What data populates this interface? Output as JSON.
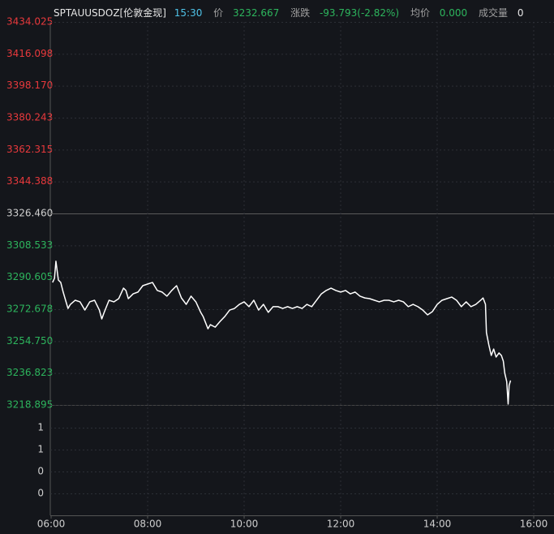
{
  "chart_data": {
    "type": "line",
    "header": {
      "symbol": "SPTAUUSDOZ[伦敦金现]",
      "time": "15:30",
      "price_label": "价",
      "price": 3232.667,
      "change_label": "涨跌",
      "change": -93.793,
      "change_percent": "(-2.82%)",
      "avg_label": "均价",
      "avg": "0.000",
      "volume_label": "成交量",
      "volume": 0
    },
    "colors": {
      "line": "#ffffff",
      "up": "#e8393c",
      "down": "#2db55d",
      "flat": "#cfcfcf",
      "time": "#4fc3e8"
    },
    "xlim": [
      6,
      16.42
    ],
    "xticks": [
      {
        "value": 6,
        "label": "06:00"
      },
      {
        "value": 8,
        "label": "08:00"
      },
      {
        "value": 10,
        "label": "10:00"
      },
      {
        "value": 12,
        "label": "12:00"
      },
      {
        "value": 14,
        "label": "14:00"
      },
      {
        "value": 16,
        "label": "16:00"
      }
    ],
    "ylim": [
      3218.895,
      3434.025
    ],
    "yticks": [
      3434.025,
      3416.098,
      3398.17,
      3380.243,
      3362.315,
      3344.388,
      3326.46,
      3308.533,
      3290.605,
      3272.678,
      3254.75,
      3236.823,
      3218.895
    ],
    "yticks_labels": [
      "3434.025",
      "3416.098",
      "3398.170",
      "3380.243",
      "3362.315",
      "3344.388",
      "3326.460",
      "3308.533",
      "3290.605",
      "3272.678",
      "3254.750",
      "3236.823",
      "3218.895"
    ],
    "volume_ylim": [
      0,
      1
    ],
    "volume_yticks": [
      {
        "value": 0.8,
        "label": "1"
      },
      {
        "value": 0.6,
        "label": "1"
      },
      {
        "value": 0.4,
        "label": "0"
      },
      {
        "value": 0.2,
        "label": "0"
      }
    ],
    "grid": true,
    "series": [
      {
        "name": "SPTAUUSDOZ",
        "color": "#ffffff",
        "x": [
          6.03,
          6.07,
          6.1,
          6.15,
          6.2,
          6.25,
          6.3,
          6.35,
          6.4,
          6.5,
          6.6,
          6.7,
          6.8,
          6.9,
          7.0,
          7.05,
          7.1,
          7.2,
          7.3,
          7.4,
          7.5,
          7.55,
          7.6,
          7.7,
          7.8,
          7.9,
          8.0,
          8.1,
          8.2,
          8.3,
          8.4,
          8.5,
          8.6,
          8.7,
          8.8,
          8.9,
          9.0,
          9.1,
          9.15,
          9.25,
          9.3,
          9.4,
          9.5,
          9.6,
          9.7,
          9.8,
          9.9,
          10.0,
          10.1,
          10.2,
          10.3,
          10.4,
          10.5,
          10.6,
          10.7,
          10.8,
          10.9,
          11.0,
          11.1,
          11.2,
          11.3,
          11.4,
          11.5,
          11.6,
          11.7,
          11.8,
          11.9,
          12.0,
          12.1,
          12.2,
          12.3,
          12.4,
          12.5,
          12.6,
          12.7,
          12.8,
          12.9,
          13.0,
          13.1,
          13.2,
          13.3,
          13.4,
          13.5,
          13.6,
          13.7,
          13.8,
          13.9,
          14.0,
          14.1,
          14.2,
          14.3,
          14.4,
          14.5,
          14.6,
          14.7,
          14.8,
          14.9,
          14.95,
          15.0,
          15.02,
          15.07,
          15.12,
          15.17,
          15.22,
          15.28,
          15.33,
          15.37,
          15.4,
          15.44,
          15.47,
          15.49,
          15.52
        ],
        "values": [
          3287.7,
          3290.0,
          3299.6,
          3289.1,
          3287.7,
          3282.3,
          3277.7,
          3273.1,
          3275.4,
          3277.7,
          3276.8,
          3272.2,
          3276.8,
          3277.7,
          3272.2,
          3267.2,
          3270.9,
          3277.7,
          3276.8,
          3278.6,
          3284.5,
          3283.2,
          3278.6,
          3281.3,
          3282.3,
          3285.9,
          3286.8,
          3287.7,
          3283.2,
          3282.3,
          3280.0,
          3283.2,
          3285.9,
          3279.0,
          3275.4,
          3280.0,
          3276.8,
          3270.9,
          3268.6,
          3261.7,
          3264.0,
          3262.6,
          3265.8,
          3268.6,
          3272.2,
          3273.1,
          3275.4,
          3276.8,
          3274.1,
          3277.7,
          3272.2,
          3275.4,
          3270.9,
          3274.1,
          3274.1,
          3273.1,
          3274.1,
          3273.1,
          3274.1,
          3273.1,
          3275.4,
          3274.1,
          3277.7,
          3281.3,
          3283.2,
          3284.5,
          3283.2,
          3282.3,
          3283.2,
          3281.3,
          3282.3,
          3280.0,
          3279.0,
          3278.6,
          3277.7,
          3276.8,
          3277.7,
          3277.7,
          3276.8,
          3277.7,
          3276.8,
          3274.1,
          3275.4,
          3274.1,
          3272.2,
          3269.5,
          3271.3,
          3275.4,
          3277.7,
          3278.6,
          3279.5,
          3277.7,
          3274.1,
          3276.8,
          3274.1,
          3275.4,
          3277.7,
          3279.0,
          3275.4,
          3259.5,
          3252.6,
          3246.7,
          3250.3,
          3245.8,
          3248.1,
          3246.7,
          3243.5,
          3236.7,
          3232.1,
          3219.4,
          3229.8,
          3232.667
        ]
      }
    ]
  }
}
